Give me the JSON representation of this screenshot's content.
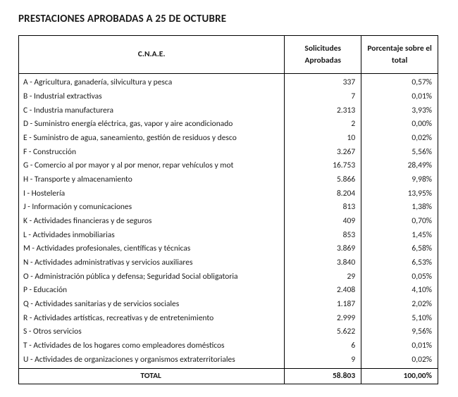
{
  "title": "PRESTACIONES APROBADAS A 25 DE OCTUBRE",
  "table": {
    "columns": {
      "cnae": "C.N.A.E.",
      "solicitudes": "Solicitudes Aprobadas",
      "porcentaje": "Porcentaje sobre el total"
    },
    "rows": [
      {
        "cnae": "A - Agricultura, ganadería, silvicultura y pesca",
        "solicitudes": "337",
        "porcentaje": "0,57%"
      },
      {
        "cnae": "B - Industrial extractivas",
        "solicitudes": "7",
        "porcentaje": "0,01%"
      },
      {
        "cnae": "C - Industria manufacturera",
        "solicitudes": "2.313",
        "porcentaje": "3,93%"
      },
      {
        "cnae": "D - Suministro energía eléctrica, gas, vapor y aire acondicionado",
        "solicitudes": "2",
        "porcentaje": "0,00%"
      },
      {
        "cnae": "E - Suministro de agua, saneamiento, gestión de residuos y desco",
        "solicitudes": "10",
        "porcentaje": "0,02%"
      },
      {
        "cnae": "F - Construcción",
        "solicitudes": "3.267",
        "porcentaje": "5,56%"
      },
      {
        "cnae": "G - Comercio al por mayor y al por menor, repar vehículos y mot",
        "solicitudes": "16.753",
        "porcentaje": "28,49%"
      },
      {
        "cnae": "H - Transporte y almacenamiento",
        "solicitudes": "5.866",
        "porcentaje": "9,98%"
      },
      {
        "cnae": "I - Hostelería",
        "solicitudes": "8.204",
        "porcentaje": "13,95%"
      },
      {
        "cnae": "J - Información y comunicaciones",
        "solicitudes": "813",
        "porcentaje": "1,38%"
      },
      {
        "cnae": "K - Actividades financieras y de seguros",
        "solicitudes": "409",
        "porcentaje": "0,70%"
      },
      {
        "cnae": "L - Actividades inmobiliarias",
        "solicitudes": "853",
        "porcentaje": "1,45%"
      },
      {
        "cnae": "M - Actividades profesionales, científicas y técnicas",
        "solicitudes": "3.869",
        "porcentaje": "6,58%"
      },
      {
        "cnae": "N - Actividades administrativas y servicios auxiliares",
        "solicitudes": "3.840",
        "porcentaje": "6,53%"
      },
      {
        "cnae": "O - Administración pública y defensa; Seguridad Social obligatoria",
        "solicitudes": "29",
        "porcentaje": "0,05%"
      },
      {
        "cnae": "P - Educación",
        "solicitudes": "2.408",
        "porcentaje": "4,10%"
      },
      {
        "cnae": "Q - Actividades sanitarias y de servicios sociales",
        "solicitudes": "1.187",
        "porcentaje": "2,02%"
      },
      {
        "cnae": "R - Actividades artísticas, recreativas y de entretenimiento",
        "solicitudes": "2.999",
        "porcentaje": "5,10%"
      },
      {
        "cnae": "S - Otros servicios",
        "solicitudes": "5.622",
        "porcentaje": "9,56%"
      },
      {
        "cnae": "T - Actividades de los hogares como empleadores domésticos",
        "solicitudes": "6",
        "porcentaje": "0,01%"
      },
      {
        "cnae": "U - Actividades de organizaciones y organismos extraterritoriales",
        "solicitudes": "9",
        "porcentaje": "0,02%"
      }
    ],
    "total": {
      "label": "TOTAL",
      "solicitudes": "58.803",
      "porcentaje": "100,00%"
    }
  }
}
